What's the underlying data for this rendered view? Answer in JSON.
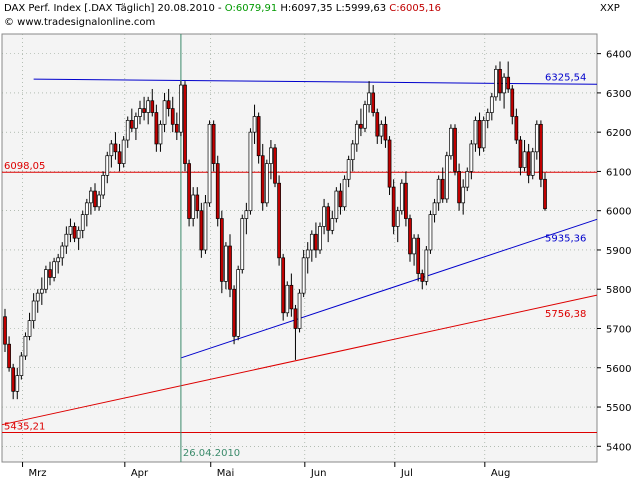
{
  "header": {
    "prefix": "DAX Perf. Index [.DAX  Täglich] 20.08.2010 - ",
    "open": "O:6079,91",
    "high": " H:6097,35",
    "low": " L:5999,63",
    "close": " C:6005,16",
    "source": "© www.tradesignalonline.com",
    "symbol": "XXP"
  },
  "colors": {
    "background": "#f4f4f4",
    "up": "#ffffff",
    "down": "#c00000",
    "trendline_blue": "#0000cc",
    "trendline_red": "#dd0000",
    "vline": "#3a8a6a",
    "grid": "#8a9a8a"
  },
  "chart_data": {
    "type": "candlestick",
    "title": "DAX Perf. Index [.DAX  Täglich] 20.08.2010",
    "ylim": [
      5360,
      6450
    ],
    "y_ticks": [
      5400,
      5500,
      5600,
      5700,
      5800,
      5900,
      6000,
      6100,
      6200,
      6300,
      6400
    ],
    "y_tick_labels": [
      "5400",
      "5500",
      "5600",
      "5700",
      "5800",
      "5900",
      "6000",
      "6100",
      "6200",
      "6300",
      "6400"
    ],
    "x_labels": [
      "Mrz",
      "Apr",
      "Mai",
      "Jun",
      "Jul",
      "Aug"
    ],
    "grid": true,
    "candles_ohlc": [
      [
        5730,
        5750,
        5640,
        5660
      ],
      [
        5660,
        5680,
        5590,
        5600
      ],
      [
        5600,
        5610,
        5520,
        5540
      ],
      [
        5540,
        5600,
        5520,
        5580
      ],
      [
        5580,
        5640,
        5570,
        5630
      ],
      [
        5630,
        5690,
        5620,
        5680
      ],
      [
        5680,
        5740,
        5670,
        5720
      ],
      [
        5720,
        5790,
        5700,
        5770
      ],
      [
        5770,
        5800,
        5740,
        5790
      ],
      [
        5790,
        5830,
        5760,
        5800
      ],
      [
        5800,
        5860,
        5790,
        5850
      ],
      [
        5850,
        5870,
        5810,
        5830
      ],
      [
        5830,
        5880,
        5820,
        5870
      ],
      [
        5870,
        5890,
        5840,
        5880
      ],
      [
        5880,
        5920,
        5860,
        5910
      ],
      [
        5910,
        5960,
        5890,
        5940
      ],
      [
        5940,
        5980,
        5920,
        5960
      ],
      [
        5960,
        5970,
        5920,
        5930
      ],
      [
        5930,
        5960,
        5900,
        5950
      ],
      [
        5950,
        6000,
        5930,
        5990
      ],
      [
        5990,
        6030,
        5960,
        6020
      ],
      [
        6020,
        6060,
        5990,
        6050
      ],
      [
        6050,
        6070,
        6000,
        6010
      ],
      [
        6010,
        6050,
        6000,
        6040
      ],
      [
        6040,
        6100,
        6030,
        6090
      ],
      [
        6090,
        6150,
        6070,
        6140
      ],
      [
        6140,
        6180,
        6110,
        6170
      ],
      [
        6170,
        6200,
        6130,
        6150
      ],
      [
        6150,
        6170,
        6100,
        6120
      ],
      [
        6120,
        6190,
        6110,
        6180
      ],
      [
        6180,
        6240,
        6160,
        6230
      ],
      [
        6230,
        6260,
        6200,
        6210
      ],
      [
        6210,
        6250,
        6180,
        6240
      ],
      [
        6240,
        6280,
        6220,
        6260
      ],
      [
        6260,
        6290,
        6230,
        6250
      ],
      [
        6250,
        6290,
        6220,
        6280
      ],
      [
        6280,
        6310,
        6240,
        6250
      ],
      [
        6250,
        6270,
        6150,
        6170
      ],
      [
        6170,
        6230,
        6150,
        6220
      ],
      [
        6220,
        6300,
        6200,
        6280
      ],
      [
        6280,
        6310,
        6240,
        6260
      ],
      [
        6260,
        6290,
        6200,
        6220
      ],
      [
        6220,
        6250,
        6180,
        6200
      ],
      [
        6200,
        6330,
        6190,
        6320
      ],
      [
        6320,
        6330,
        6100,
        6120
      ],
      [
        6120,
        6130,
        5960,
        5980
      ],
      [
        5980,
        6060,
        5960,
        6040
      ],
      [
        6040,
        6060,
        5980,
        6000
      ],
      [
        6000,
        6020,
        5880,
        5900
      ],
      [
        5900,
        6040,
        5890,
        6020
      ],
      [
        6020,
        6230,
        6010,
        6220
      ],
      [
        6220,
        6230,
        6100,
        6120
      ],
      [
        6120,
        6140,
        5960,
        5980
      ],
      [
        5980,
        6000,
        5790,
        5820
      ],
      [
        5820,
        5920,
        5800,
        5910
      ],
      [
        5910,
        5940,
        5780,
        5800
      ],
      [
        5800,
        5810,
        5660,
        5680
      ],
      [
        5680,
        5860,
        5670,
        5850
      ],
      [
        5850,
        5990,
        5840,
        5980
      ],
      [
        5980,
        6020,
        5940,
        6000
      ],
      [
        6000,
        6210,
        5990,
        6200
      ],
      [
        6200,
        6270,
        6170,
        6240
      ],
      [
        6240,
        6250,
        6120,
        6140
      ],
      [
        6140,
        6170,
        6000,
        6020
      ],
      [
        6020,
        6130,
        6010,
        6120
      ],
      [
        6120,
        6180,
        6080,
        6160
      ],
      [
        6160,
        6170,
        6060,
        6070
      ],
      [
        6070,
        6090,
        5860,
        5880
      ],
      [
        5880,
        5890,
        5720,
        5740
      ],
      [
        5740,
        5820,
        5730,
        5810
      ],
      [
        5810,
        5840,
        5730,
        5750
      ],
      [
        5750,
        5760,
        5620,
        5700
      ],
      [
        5700,
        5800,
        5690,
        5790
      ],
      [
        5790,
        5900,
        5780,
        5880
      ],
      [
        5880,
        5920,
        5840,
        5900
      ],
      [
        5900,
        5950,
        5870,
        5940
      ],
      [
        5940,
        5970,
        5880,
        5900
      ],
      [
        5900,
        5970,
        5890,
        5960
      ],
      [
        5960,
        6030,
        5940,
        6010
      ],
      [
        6010,
        6020,
        5920,
        5950
      ],
      [
        5950,
        6000,
        5940,
        5980
      ],
      [
        5980,
        6060,
        5970,
        6050
      ],
      [
        6050,
        6070,
        5990,
        6010
      ],
      [
        6010,
        6090,
        6000,
        6080
      ],
      [
        6080,
        6140,
        6060,
        6130
      ],
      [
        6130,
        6180,
        6100,
        6170
      ],
      [
        6170,
        6230,
        6150,
        6220
      ],
      [
        6220,
        6260,
        6190,
        6210
      ],
      [
        6210,
        6280,
        6200,
        6270
      ],
      [
        6270,
        6330,
        6250,
        6300
      ],
      [
        6300,
        6320,
        6240,
        6250
      ],
      [
        6250,
        6260,
        6170,
        6190
      ],
      [
        6190,
        6230,
        6170,
        6220
      ],
      [
        6220,
        6240,
        6160,
        6180
      ],
      [
        6180,
        6190,
        6040,
        6060
      ],
      [
        6060,
        6080,
        5940,
        5960
      ],
      [
        5960,
        6010,
        5920,
        6000
      ],
      [
        6000,
        6080,
        5990,
        6070
      ],
      [
        6070,
        6100,
        5960,
        5980
      ],
      [
        5980,
        5990,
        5870,
        5890
      ],
      [
        5890,
        5940,
        5860,
        5930
      ],
      [
        5930,
        5940,
        5820,
        5840
      ],
      [
        5840,
        5850,
        5800,
        5820
      ],
      [
        5820,
        5910,
        5810,
        5900
      ],
      [
        5900,
        6000,
        5890,
        5990
      ],
      [
        5990,
        6030,
        5970,
        6020
      ],
      [
        6020,
        6090,
        6000,
        6080
      ],
      [
        6080,
        6110,
        6020,
        6030
      ],
      [
        6030,
        6150,
        6020,
        6140
      ],
      [
        6140,
        6220,
        6130,
        6210
      ],
      [
        6210,
        6220,
        6090,
        6100
      ],
      [
        6100,
        6120,
        6000,
        6020
      ],
      [
        6020,
        6080,
        5990,
        6060
      ],
      [
        6060,
        6110,
        6050,
        6100
      ],
      [
        6100,
        6180,
        6080,
        6170
      ],
      [
        6170,
        6240,
        6150,
        6230
      ],
      [
        6230,
        6250,
        6140,
        6160
      ],
      [
        6160,
        6240,
        6150,
        6230
      ],
      [
        6230,
        6260,
        6210,
        6250
      ],
      [
        6250,
        6300,
        6230,
        6290
      ],
      [
        6290,
        6370,
        6280,
        6360
      ],
      [
        6360,
        6380,
        6280,
        6300
      ],
      [
        6300,
        6350,
        6260,
        6340
      ],
      [
        6340,
        6380,
        6300,
        6310
      ],
      [
        6310,
        6320,
        6220,
        6240
      ],
      [
        6240,
        6260,
        6170,
        6180
      ],
      [
        6180,
        6190,
        6090,
        6110
      ],
      [
        6110,
        6180,
        6100,
        6150
      ],
      [
        6150,
        6170,
        6070,
        6090
      ],
      [
        6090,
        6160,
        6080,
        6150
      ],
      [
        6150,
        6230,
        6130,
        6220
      ],
      [
        6220,
        6230,
        6060,
        6080
      ],
      [
        6080,
        6097,
        6000,
        6005
      ]
    ],
    "lines": [
      {
        "type": "horizontal",
        "value": 6098.05,
        "label": "6098,05",
        "color": "#dd0000"
      },
      {
        "type": "horizontal",
        "value": 5435.21,
        "label": "5435,21",
        "color": "#dd0000"
      },
      {
        "type": "trend",
        "from_index": 7,
        "from_value": 6335,
        "to_index": 137,
        "to_value": 6322,
        "label": "6325,54",
        "color": "#0000cc"
      },
      {
        "type": "trend",
        "from_index": 43,
        "from_value": 5625,
        "to_index": 137,
        "to_value": 5978,
        "label": "5935,36",
        "color": "#0000cc"
      },
      {
        "type": "trend",
        "from_index": 0,
        "from_value": 5455,
        "to_index": 137,
        "to_value": 5785,
        "label": "5756,38",
        "color": "#dd0000"
      },
      {
        "type": "vertical",
        "index": 43,
        "label": "26.04.2010",
        "color": "#3a8a6a"
      }
    ]
  }
}
